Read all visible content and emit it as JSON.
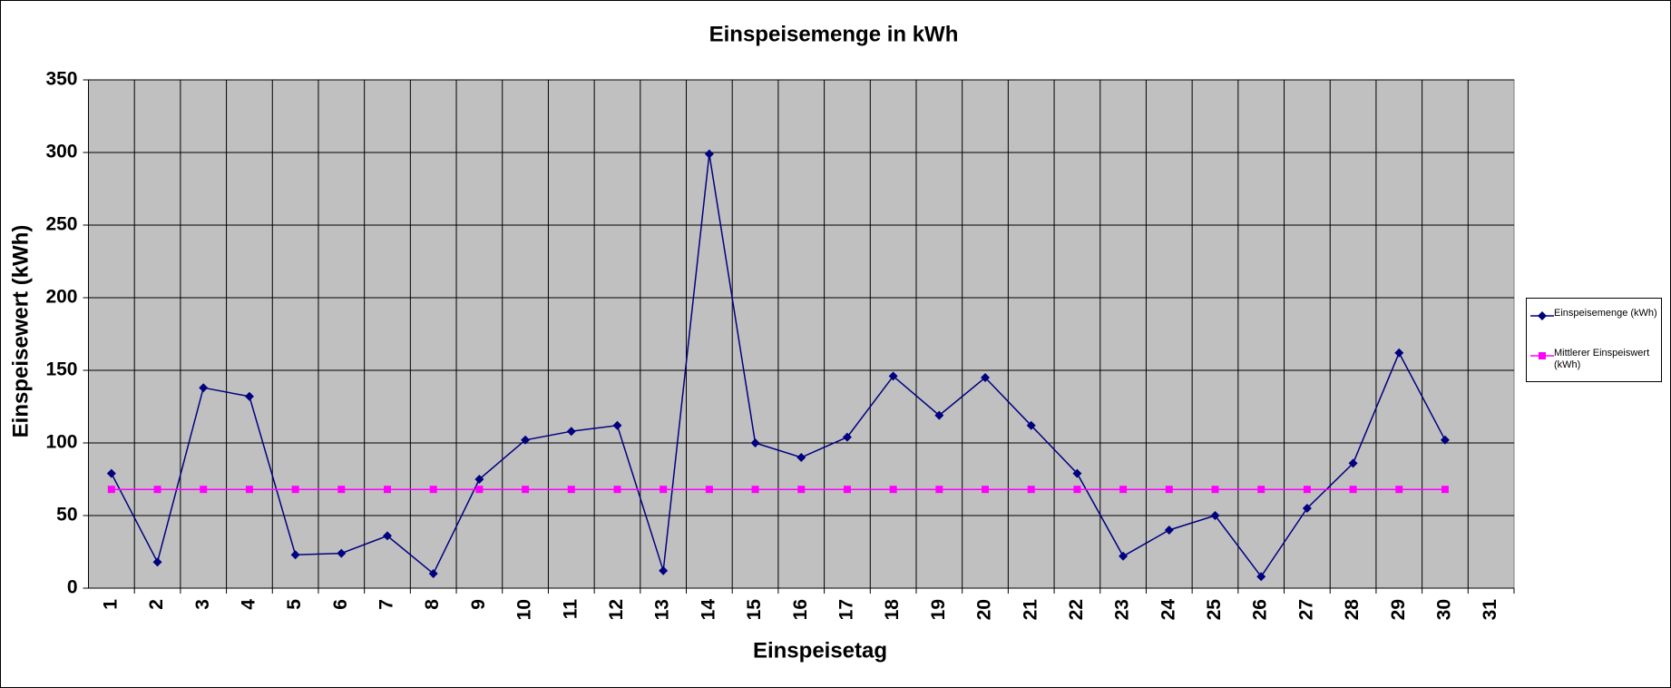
{
  "chart_data": {
    "type": "line",
    "title": "Einspeisemenge in kWh",
    "x_label": "Einspeisetag",
    "y_label": "Einspeisewert  (kWh)",
    "categories": [
      "1",
      "2",
      "3",
      "4",
      "5",
      "6",
      "7",
      "8",
      "9",
      "10",
      "11",
      "12",
      "13",
      "14",
      "15",
      "16",
      "17",
      "18",
      "19",
      "20",
      "21",
      "22",
      "23",
      "24",
      "25",
      "26",
      "27",
      "28",
      "29",
      "30",
      "31"
    ],
    "series": [
      {
        "name": "Einspeisemenge (kWh)",
        "color": "#000080",
        "marker": "diamond",
        "values": [
          79,
          18,
          138,
          132,
          23,
          24,
          36,
          10,
          75,
          102,
          108,
          112,
          12,
          299,
          100,
          90,
          104,
          146,
          119,
          145,
          112,
          79,
          22,
          40,
          50,
          8,
          55,
          86,
          162,
          102,
          null
        ]
      },
      {
        "name": "Mittlerer Einspeiswert (kWh)",
        "color": "#ff00ff",
        "marker": "square",
        "values": [
          68,
          68,
          68,
          68,
          68,
          68,
          68,
          68,
          68,
          68,
          68,
          68,
          68,
          68,
          68,
          68,
          68,
          68,
          68,
          68,
          68,
          68,
          68,
          68,
          68,
          68,
          68,
          68,
          68,
          68,
          null
        ]
      }
    ],
    "ylim": [
      0,
      350
    ],
    "yticks": [
      0,
      50,
      100,
      150,
      200,
      250,
      300,
      350
    ],
    "grid": true,
    "plot_background": "#c0c0c0",
    "legend": "right"
  }
}
